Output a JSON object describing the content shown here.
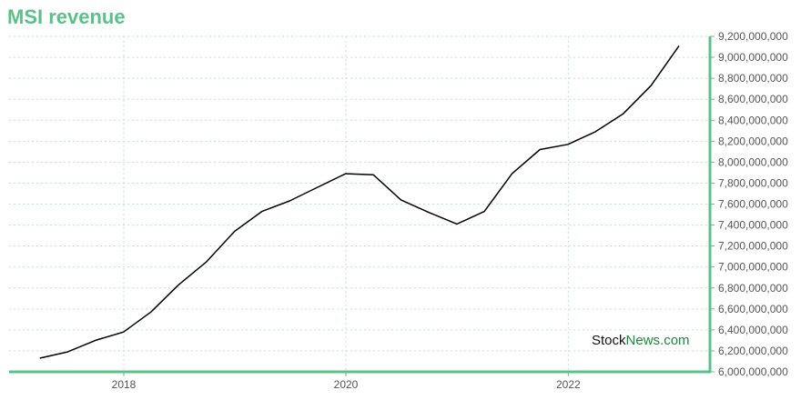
{
  "chart_data": {
    "type": "line",
    "title": "MSI revenue",
    "x": [
      "2017-03-31",
      "2017-06-30",
      "2017-09-30",
      "2017-12-31",
      "2018-03-31",
      "2018-06-30",
      "2018-09-30",
      "2018-12-31",
      "2019-03-31",
      "2019-06-30",
      "2019-09-30",
      "2019-12-31",
      "2020-03-31",
      "2020-06-30",
      "2020-09-30",
      "2020-12-31",
      "2021-03-31",
      "2021-06-30",
      "2021-09-30",
      "2021-12-31",
      "2022-03-31",
      "2022-06-30",
      "2022-09-30",
      "2022-12-31"
    ],
    "series": [
      {
        "values": [
          6130000000,
          6190000000,
          6300000000,
          6380000000,
          6570000000,
          6830000000,
          7050000000,
          7340000000,
          7530000000,
          7630000000,
          7760000000,
          7890000000,
          7880000000,
          7640000000,
          7520000000,
          7410000000,
          7530000000,
          7890000000,
          8120000000,
          8170000000,
          8290000000,
          8460000000,
          8730000000,
          9110000000
        ],
        "color": "#000000"
      }
    ],
    "xticks": [
      "2018",
      "2020",
      "2022"
    ],
    "yticks": [
      "6,000,000,000",
      "6,200,000,000",
      "6,400,000,000",
      "6,600,000,000",
      "6,800,000,000",
      "7,000,000,000",
      "7,200,000,000",
      "7,400,000,000",
      "7,600,000,000",
      "7,800,000,000",
      "8,000,000,000",
      "8,200,000,000",
      "8,400,000,000",
      "8,600,000,000",
      "8,800,000,000",
      "9,000,000,000",
      "9,200,000,000"
    ],
    "ylim": [
      6000000000,
      9200000000
    ],
    "y_axis_side": "right",
    "grid": true,
    "accent_color": "#5cc08a"
  },
  "watermark": {
    "part1": "Stock",
    "part2": "News",
    "part3": ".com"
  }
}
